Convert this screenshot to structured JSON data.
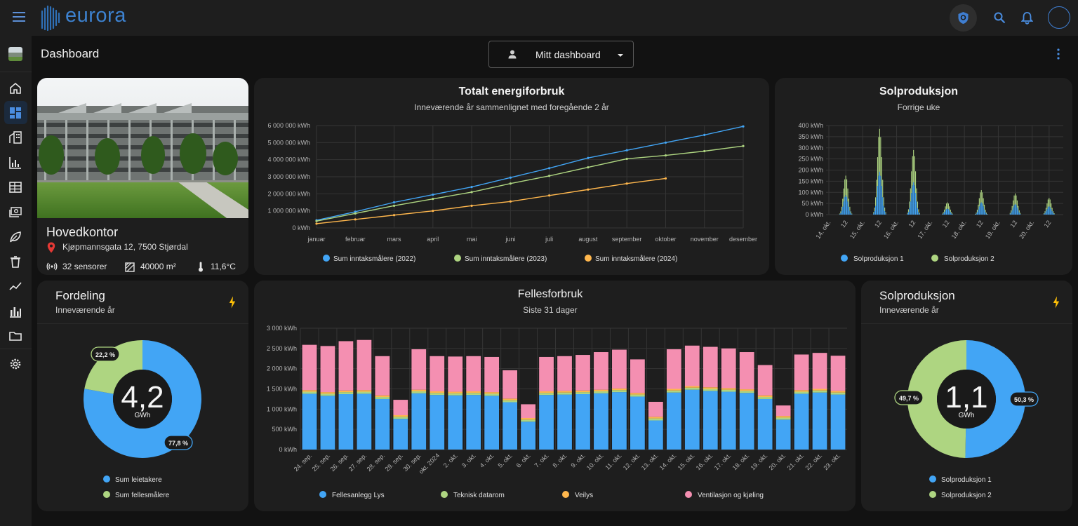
{
  "brand": {
    "name": "eurora"
  },
  "header": {
    "title": "Dashboard",
    "dashboard_select": "Mitt dashboard"
  },
  "colors": {
    "blue": "#42a5f5",
    "green": "#aed581",
    "orange": "#ffb74d",
    "pink": "#f48fb1",
    "yellow": "#ffc107"
  },
  "sidebar": {
    "items": [
      {
        "icon": "building-thumb-icon"
      },
      {
        "icon": "home-icon"
      },
      {
        "icon": "dashboard-icon"
      },
      {
        "icon": "buildings-icon"
      },
      {
        "icon": "bar-chart-icon"
      },
      {
        "icon": "table-icon"
      },
      {
        "icon": "money-icon"
      },
      {
        "icon": "leaf-icon"
      },
      {
        "icon": "trash-icon"
      },
      {
        "icon": "trend-icon"
      },
      {
        "icon": "columns-icon"
      },
      {
        "icon": "folder-icon"
      },
      {
        "icon": "settings-icon"
      }
    ]
  },
  "building": {
    "name": "Hovedkontor",
    "address": "Kjøpmannsgata 12, 7500 Stjørdal",
    "sensors": "32 sensorer",
    "area": "40000 m²",
    "temperature": "11,6°C"
  },
  "cards": {
    "total": {
      "title": "Totalt energiforbruk",
      "subtitle": "Inneværende år sammenlignet med foregående 2 år"
    },
    "solar_week": {
      "title": "Solproduksjon",
      "subtitle": "Forrige uke"
    },
    "distribution": {
      "title": "Fordeling",
      "subtitle": "Inneværende år",
      "center_value": "4,2",
      "center_unit": "GWh"
    },
    "common": {
      "title": "Fellesforbruk",
      "subtitle": "Siste 31 dager"
    },
    "solar_year": {
      "title": "Solproduksjon",
      "subtitle": "Inneværende år",
      "center_value": "1,1",
      "center_unit": "GWh"
    }
  },
  "chart_data": [
    {
      "type": "line",
      "title": "Totalt energiforbruk",
      "subtitle": "Inneværende år sammenlignet med foregående 2 år",
      "categories": [
        "januar",
        "februar",
        "mars",
        "april",
        "mai",
        "juni",
        "juli",
        "august",
        "september",
        "oktober",
        "november",
        "desember"
      ],
      "y_ticks": [
        "0 kWh",
        "1 000 000 kWh",
        "2 000 000 kWh",
        "3 000 000 kWh",
        "4 000 000 kWh",
        "5 000 000 kWh",
        "6 000 000 kWh"
      ],
      "ylim": [
        0,
        6000000
      ],
      "grid": true,
      "legend": "bottom",
      "series": [
        {
          "name": "Sum inntaksmålere (2022)",
          "color": "#42a5f5",
          "values": [
            450000,
            950000,
            1500000,
            1950000,
            2400000,
            2950000,
            3500000,
            4100000,
            4550000,
            5000000,
            5450000,
            5950000
          ]
        },
        {
          "name": "Sum inntaksmålere (2023)",
          "color": "#aed581",
          "values": [
            400000,
            850000,
            1300000,
            1700000,
            2100000,
            2600000,
            3050000,
            3550000,
            4050000,
            4250000,
            4500000,
            4800000
          ]
        },
        {
          "name": "Sum inntaksmålere (2024)",
          "color": "#ffb74d",
          "values": [
            250000,
            500000,
            750000,
            1000000,
            1300000,
            1550000,
            1900000,
            2250000,
            2600000,
            2900000,
            null,
            null
          ]
        }
      ]
    },
    {
      "type": "bar",
      "title": "Solproduksjon",
      "subtitle": "Forrige uke",
      "x_ticks": [
        "14. okt.",
        "12",
        "15. okt.",
        "12",
        "16. okt.",
        "12",
        "17. okt.",
        "12",
        "18. okt.",
        "12",
        "19. okt.",
        "12",
        "20. okt.",
        "12"
      ],
      "y_ticks": [
        "0 kWh",
        "50 kWh",
        "100 kWh",
        "150 kWh",
        "200 kWh",
        "250 kWh",
        "300 kWh",
        "350 kWh",
        "400 kWh"
      ],
      "ylim": [
        0,
        400
      ],
      "stacked": true,
      "legend": "bottom",
      "day_peaks": [
        175,
        385,
        290,
        55,
        110,
        95,
        75
      ],
      "series": [
        {
          "name": "Solproduksjon 1",
          "color": "#42a5f5"
        },
        {
          "name": "Solproduksjon 2",
          "color": "#aed581"
        }
      ]
    },
    {
      "type": "pie",
      "title": "Fordeling",
      "subtitle": "Inneværende år",
      "slices": [
        {
          "name": "Sum leietakere",
          "value": 77.8,
          "label": "77,8 %",
          "color": "#42a5f5"
        },
        {
          "name": "Sum fellesmålere",
          "value": 22.2,
          "label": "22,2 %",
          "color": "#aed581"
        }
      ]
    },
    {
      "type": "bar",
      "title": "Fellesforbruk",
      "subtitle": "Siste 31 dager",
      "stacked": true,
      "categories": [
        "24. sep.",
        "25. sep.",
        "26. sep.",
        "27. sep.",
        "28. sep.",
        "29. sep.",
        "30. sep.",
        "okt. 2024",
        "2. okt.",
        "3. okt.",
        "4. okt.",
        "5. okt.",
        "6. okt.",
        "7. okt.",
        "8. okt.",
        "9. okt.",
        "10. okt.",
        "11. okt.",
        "12. okt.",
        "13. okt.",
        "14. okt.",
        "15. okt.",
        "16. okt.",
        "17. okt.",
        "18. okt.",
        "19. okt.",
        "20. okt.",
        "21. okt.",
        "22. okt.",
        "23. okt."
      ],
      "y_ticks": [
        "0 kWh",
        "500 kWh",
        "1 000 kWh",
        "1 500 kWh",
        "2 000 kWh",
        "2 500 kWh",
        "3 000 kWh"
      ],
      "ylim": [
        0,
        3000
      ],
      "legend": "bottom",
      "series": [
        {
          "name": "Fellesanlegg Lys",
          "color": "#42a5f5",
          "values": [
            1380,
            1330,
            1370,
            1380,
            1250,
            760,
            1390,
            1350,
            1340,
            1350,
            1330,
            1170,
            690,
            1350,
            1360,
            1370,
            1390,
            1420,
            1310,
            720,
            1410,
            1480,
            1450,
            1430,
            1400,
            1250,
            740,
            1380,
            1410,
            1360
          ]
        },
        {
          "name": "Teknisk datarom",
          "color": "#aed581",
          "values": [
            50,
            50,
            50,
            50,
            50,
            50,
            50,
            50,
            50,
            50,
            50,
            50,
            50,
            50,
            50,
            50,
            50,
            50,
            50,
            50,
            50,
            50,
            50,
            50,
            50,
            50,
            50,
            50,
            50,
            50
          ]
        },
        {
          "name": "Veilys",
          "color": "#ffb74d",
          "values": [
            40,
            40,
            40,
            40,
            40,
            40,
            40,
            40,
            40,
            40,
            40,
            40,
            40,
            40,
            40,
            40,
            40,
            40,
            40,
            40,
            40,
            40,
            40,
            40,
            40,
            40,
            40,
            40,
            40,
            40
          ]
        },
        {
          "name": "Ventilasjon og kjøling",
          "color": "#f48fb1",
          "values": [
            1120,
            1140,
            1220,
            1240,
            970,
            380,
            1000,
            870,
            870,
            870,
            870,
            700,
            340,
            850,
            860,
            880,
            930,
            960,
            830,
            370,
            980,
            1000,
            1000,
            980,
            920,
            750,
            260,
            880,
            890,
            870
          ]
        }
      ]
    },
    {
      "type": "pie",
      "title": "Solproduksjon",
      "subtitle": "Inneværende år",
      "slices": [
        {
          "name": "Solproduksjon 1",
          "value": 50.3,
          "label": "50,3 %",
          "color": "#42a5f5"
        },
        {
          "name": "Solproduksjon 2",
          "value": 49.7,
          "label": "49,7 %",
          "color": "#aed581"
        }
      ]
    }
  ]
}
